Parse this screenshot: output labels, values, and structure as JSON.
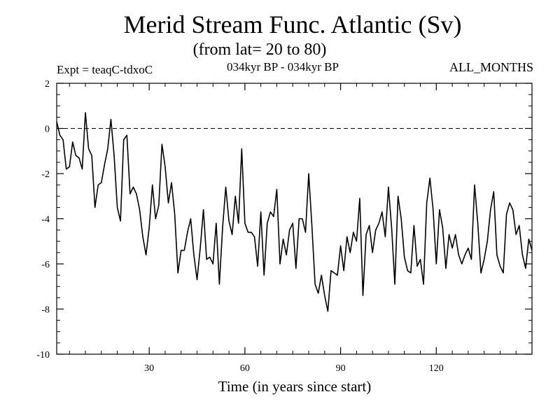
{
  "chart_data": {
    "type": "line",
    "title": "Merid Stream Func. Atlantic (Sv)",
    "subtitle": "(from lat= 20 to 80)",
    "expt_label": "Expt = teaqC-tdxoC",
    "period_label": "034kyr BP - 034kyr BP",
    "months_label": "ALL_MONTHS",
    "xlabel": "Time (in years since start)",
    "ylabel": "",
    "xlim": [
      1,
      150
    ],
    "ylim": [
      -10,
      2
    ],
    "xticks": [
      30,
      60,
      90,
      120
    ],
    "yticks": [
      2,
      0,
      -2,
      -4,
      -6,
      -8,
      -10
    ],
    "reference_line": 0,
    "series": [
      {
        "name": "Merid Stream Func. Atlantic",
        "x": [
          1,
          2,
          3,
          4,
          5,
          6,
          7,
          8,
          9,
          10,
          11,
          12,
          13,
          14,
          15,
          16,
          17,
          18,
          19,
          20,
          21,
          22,
          23,
          24,
          25,
          26,
          27,
          28,
          29,
          30,
          31,
          32,
          33,
          34,
          35,
          36,
          37,
          38,
          39,
          40,
          41,
          42,
          43,
          44,
          45,
          46,
          47,
          48,
          49,
          50,
          51,
          52,
          53,
          54,
          55,
          56,
          57,
          58,
          59,
          60,
          61,
          62,
          63,
          64,
          65,
          66,
          67,
          68,
          69,
          70,
          71,
          72,
          73,
          74,
          75,
          76,
          77,
          78,
          79,
          80,
          81,
          82,
          83,
          84,
          85,
          86,
          87,
          88,
          89,
          90,
          91,
          92,
          93,
          94,
          95,
          96,
          97,
          98,
          99,
          100,
          101,
          102,
          103,
          104,
          105,
          106,
          107,
          108,
          109,
          110,
          111,
          112,
          113,
          114,
          115,
          116,
          117,
          118,
          119,
          120,
          121,
          122,
          123,
          124,
          125,
          126,
          127,
          128,
          129,
          130,
          131,
          132,
          133,
          134,
          135,
          136,
          137,
          138,
          139,
          140,
          141,
          142,
          143,
          144,
          145,
          146,
          147,
          148,
          149,
          150
        ],
        "values": [
          0.3,
          -0.3,
          -0.5,
          -1.8,
          -1.7,
          -0.6,
          -1.2,
          -1.3,
          -1.8,
          0.7,
          -0.9,
          -1.2,
          -3.5,
          -2.5,
          -2.4,
          -1.6,
          -0.9,
          0.4,
          -1.2,
          -3.5,
          -4.1,
          -0.5,
          -0.3,
          -2.9,
          -2.6,
          -2.9,
          -3.6,
          -4.8,
          -5.6,
          -4.4,
          -2.5,
          -4.0,
          -3.4,
          -0.7,
          -1.7,
          -3.3,
          -2.4,
          -3.8,
          -6.4,
          -5.4,
          -5.4,
          -4.6,
          -4.0,
          -5.6,
          -6.7,
          -5.3,
          -3.6,
          -5.8,
          -5.7,
          -6.0,
          -4.2,
          -6.9,
          -4.4,
          -2.6,
          -4.1,
          -4.7,
          -3.0,
          -4.2,
          -0.9,
          -4.2,
          -4.6,
          -4.6,
          -4.8,
          -6.1,
          -3.7,
          -6.5,
          -4.2,
          -3.7,
          -3.9,
          -2.7,
          -6.0,
          -4.9,
          -5.6,
          -4.5,
          -4.2,
          -6.2,
          -4.0,
          -4.0,
          -4.6,
          -2.0,
          -4.3,
          -6.9,
          -7.3,
          -6.5,
          -7.4,
          -8.1,
          -6.3,
          -6.4,
          -6.5,
          -5.2,
          -6.3,
          -4.8,
          -5.5,
          -4.6,
          -5.0,
          -3.1,
          -7.4,
          -4.7,
          -4.3,
          -5.5,
          -4.5,
          -4.2,
          -3.7,
          -4.8,
          -2.6,
          -4.4,
          -6.9,
          -3.0,
          -4.0,
          -5.7,
          -6.3,
          -6.4,
          -4.3,
          -6.1,
          -5.8,
          -6.9,
          -3.3,
          -2.2,
          -3.6,
          -6.0,
          -3.6,
          -4.4,
          -6.2,
          -4.7,
          -5.3,
          -4.7,
          -5.6,
          -6.0,
          -5.6,
          -5.3,
          -5.8,
          -2.5,
          -4.2,
          -6.4,
          -5.8,
          -5.0,
          -3.6,
          -2.8,
          -5.6,
          -6.1,
          -6.4,
          -3.8,
          -3.3,
          -3.6,
          -4.7,
          -4.3,
          -5.6,
          -6.2,
          -4.9,
          -5.4
        ]
      }
    ]
  }
}
